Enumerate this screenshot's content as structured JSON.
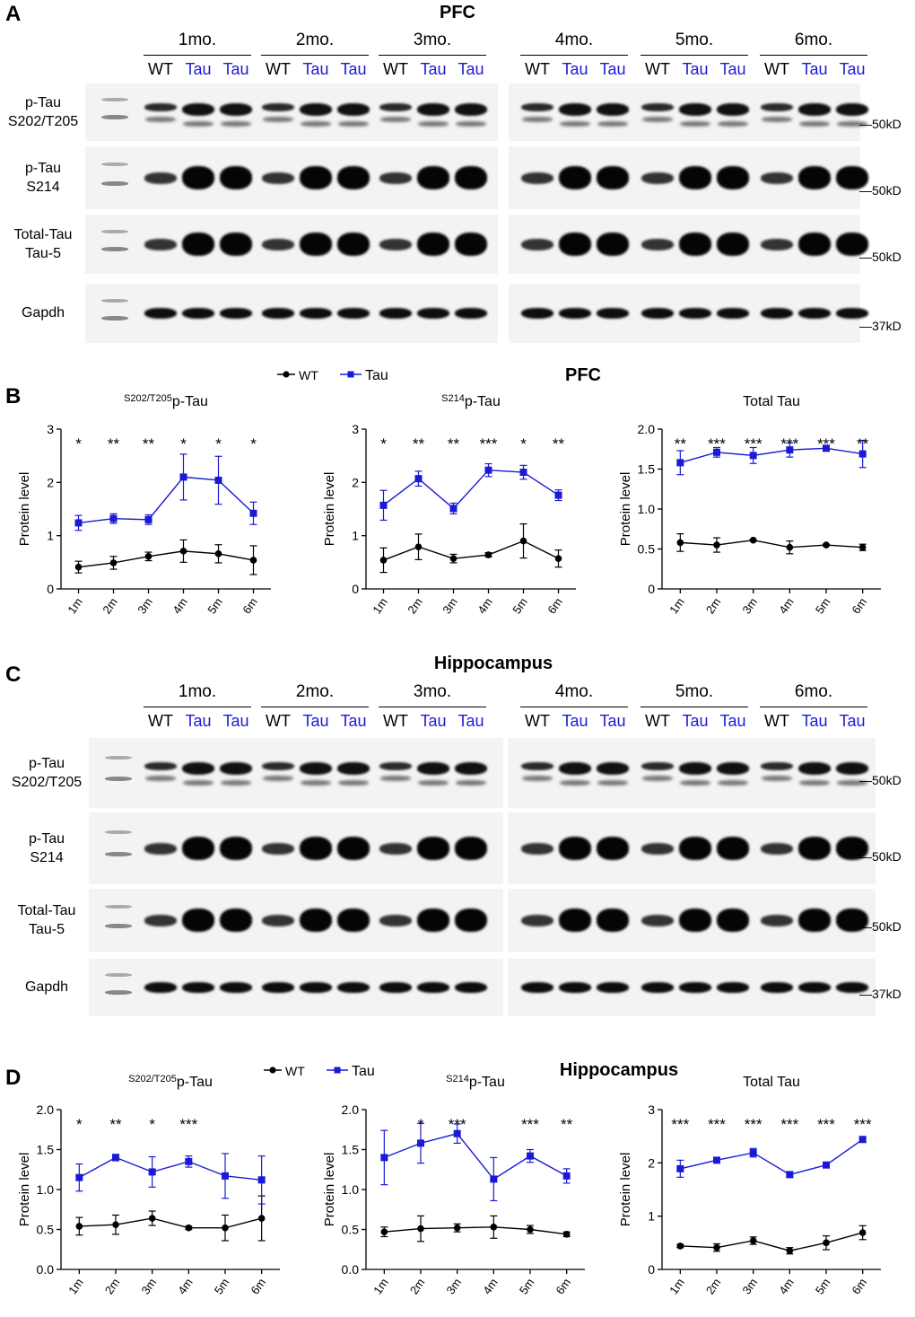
{
  "figure": {
    "panel_letters": [
      "A",
      "B",
      "C",
      "D"
    ],
    "colors": {
      "wt": "#000000",
      "tau": "#1a1ad6"
    },
    "sections": [
      {
        "title": "PFC",
        "months": [
          "1mo.",
          "2mo.",
          "3mo.",
          "4mo.",
          "5mo.",
          "6mo."
        ],
        "genotypes": [
          "WT",
          "Tau",
          "Tau"
        ],
        "rows": [
          {
            "label_lines": [
              "p-Tau",
              "S202/T205"
            ],
            "marker": "50kD"
          },
          {
            "label_lines": [
              "p-Tau",
              "S214"
            ],
            "marker": "50kD"
          },
          {
            "label_lines": [
              "Total-Tau",
              "Tau-5"
            ],
            "marker": "50kD"
          },
          {
            "label_lines": [
              "Gapdh",
              ""
            ],
            "marker": "37kD"
          }
        ]
      },
      {
        "title": "Hippocampus",
        "months": [
          "1mo.",
          "2mo.",
          "3mo.",
          "4mo.",
          "5mo.",
          "6mo."
        ],
        "genotypes": [
          "WT",
          "Tau",
          "Tau"
        ],
        "rows": [
          {
            "label_lines": [
              "p-Tau",
              "S202/T205"
            ],
            "marker": "50kD"
          },
          {
            "label_lines": [
              "p-Tau",
              "S214"
            ],
            "marker": "50kD"
          },
          {
            "label_lines": [
              "Total-Tau",
              "Tau-5"
            ],
            "marker": "50kD"
          },
          {
            "label_lines": [
              "Gapdh",
              ""
            ],
            "marker": "37kD"
          }
        ]
      }
    ],
    "legend": {
      "wt": "WT",
      "tau": "Tau"
    },
    "b_title": "PFC",
    "d_title": "Hippocampus"
  },
  "chart_data": [
    {
      "id": "B1",
      "type": "line",
      "title_sup": "S202/T205",
      "title": "p-Tau",
      "ylabel": "Protein level",
      "categories": [
        "1m",
        "2m",
        "3m",
        "4m",
        "5m",
        "6m"
      ],
      "ylim": [
        0,
        3
      ],
      "yticks": [
        "0",
        "1",
        "2",
        "3"
      ],
      "series": [
        {
          "name": "WT",
          "values": [
            0.41,
            0.49,
            0.61,
            0.71,
            0.66,
            0.54
          ],
          "errors": [
            0.11,
            0.12,
            0.08,
            0.21,
            0.17,
            0.27
          ]
        },
        {
          "name": "Tau",
          "values": [
            1.24,
            1.32,
            1.3,
            2.1,
            2.04,
            1.42
          ],
          "errors": [
            0.14,
            0.09,
            0.09,
            0.43,
            0.45,
            0.21
          ]
        }
      ],
      "significance": [
        "*",
        "**",
        "**",
        "*",
        "*",
        "*"
      ]
    },
    {
      "id": "B2",
      "type": "line",
      "title_sup": "S214",
      "title": "p-Tau",
      "ylabel": "Protein level",
      "categories": [
        "1m",
        "2m",
        "3m",
        "4m",
        "5m",
        "6m"
      ],
      "ylim": [
        0,
        3
      ],
      "yticks": [
        "0",
        "1",
        "2",
        "3"
      ],
      "series": [
        {
          "name": "WT",
          "values": [
            0.54,
            0.79,
            0.57,
            0.64,
            0.9,
            0.57
          ],
          "errors": [
            0.23,
            0.24,
            0.08,
            0.04,
            0.32,
            0.16
          ]
        },
        {
          "name": "Tau",
          "values": [
            1.57,
            2.07,
            1.51,
            2.23,
            2.19,
            1.76
          ],
          "errors": [
            0.28,
            0.14,
            0.1,
            0.12,
            0.13,
            0.1
          ]
        }
      ],
      "significance": [
        "*",
        "**",
        "**",
        "***",
        "*",
        "**"
      ]
    },
    {
      "id": "B3",
      "type": "line",
      "title_sup": "",
      "title": "Total Tau",
      "ylabel": "Protein level",
      "categories": [
        "1m",
        "2m",
        "3m",
        "4m",
        "5m",
        "6m"
      ],
      "ylim": [
        0,
        2
      ],
      "yticks": [
        "0",
        "0.5",
        "1.0",
        "1.5",
        "2.0"
      ],
      "series": [
        {
          "name": "WT",
          "values": [
            0.58,
            0.55,
            0.61,
            0.52,
            0.55,
            0.52
          ],
          "errors": [
            0.11,
            0.09,
            0.01,
            0.08,
            0.01,
            0.04
          ]
        },
        {
          "name": "Tau",
          "values": [
            1.58,
            1.71,
            1.67,
            1.74,
            1.76,
            1.69
          ],
          "errors": [
            0.15,
            0.06,
            0.1,
            0.09,
            0.02,
            0.17
          ]
        }
      ],
      "significance": [
        "**",
        "***",
        "***",
        "***",
        "***",
        "**"
      ]
    },
    {
      "id": "D1",
      "type": "line",
      "title_sup": "S202/T205",
      "title": "p-Tau",
      "ylabel": "Protein level",
      "categories": [
        "1m",
        "2m",
        "3m",
        "4m",
        "5m",
        "6m"
      ],
      "ylim": [
        0,
        2
      ],
      "yticks": [
        "0.0",
        "0.5",
        "1.0",
        "1.5",
        "2.0"
      ],
      "series": [
        {
          "name": "WT",
          "values": [
            0.54,
            0.56,
            0.64,
            0.52,
            0.52,
            0.64
          ],
          "errors": [
            0.11,
            0.12,
            0.09,
            0.02,
            0.16,
            0.28
          ]
        },
        {
          "name": "Tau",
          "values": [
            1.15,
            1.4,
            1.22,
            1.35,
            1.17,
            1.12
          ],
          "errors": [
            0.17,
            0.04,
            0.19,
            0.07,
            0.28,
            0.3
          ]
        }
      ],
      "significance": [
        "*",
        "**",
        "*",
        "***",
        "",
        ""
      ]
    },
    {
      "id": "D2",
      "type": "line",
      "title_sup": "S214",
      "title": "p-Tau",
      "ylabel": "Protein level",
      "categories": [
        "1m",
        "2m",
        "3m",
        "4m",
        "5m",
        "6m"
      ],
      "ylim": [
        0,
        2
      ],
      "yticks": [
        "0.0",
        "0.5",
        "1.0",
        "1.5",
        "2.0"
      ],
      "series": [
        {
          "name": "WT",
          "values": [
            0.47,
            0.51,
            0.52,
            0.53,
            0.5,
            0.44
          ],
          "errors": [
            0.06,
            0.16,
            0.05,
            0.14,
            0.05,
            0.03
          ]
        },
        {
          "name": "Tau",
          "values": [
            1.4,
            1.58,
            1.7,
            1.13,
            1.42,
            1.17
          ],
          "errors": [
            0.34,
            0.25,
            0.12,
            0.27,
            0.08,
            0.09
          ]
        }
      ],
      "significance": [
        "",
        "*",
        "***",
        "",
        "***",
        "**"
      ]
    },
    {
      "id": "D3",
      "type": "line",
      "title_sup": "",
      "title": "Total Tau",
      "ylabel": "Protein level",
      "categories": [
        "1m",
        "2m",
        "3m",
        "4m",
        "5m",
        "6m"
      ],
      "ylim": [
        0,
        3
      ],
      "yticks": [
        "0",
        "1",
        "2",
        "3"
      ],
      "series": [
        {
          "name": "WT",
          "values": [
            0.44,
            0.41,
            0.54,
            0.35,
            0.5,
            0.69
          ],
          "errors": [
            0.03,
            0.07,
            0.07,
            0.06,
            0.13,
            0.13
          ]
        },
        {
          "name": "Tau",
          "values": [
            1.89,
            2.05,
            2.19,
            1.78,
            1.96,
            2.44
          ],
          "errors": [
            0.16,
            0.04,
            0.08,
            0.05,
            0.04,
            0.05
          ]
        }
      ],
      "significance": [
        "***",
        "***",
        "***",
        "***",
        "***",
        "***"
      ]
    }
  ]
}
